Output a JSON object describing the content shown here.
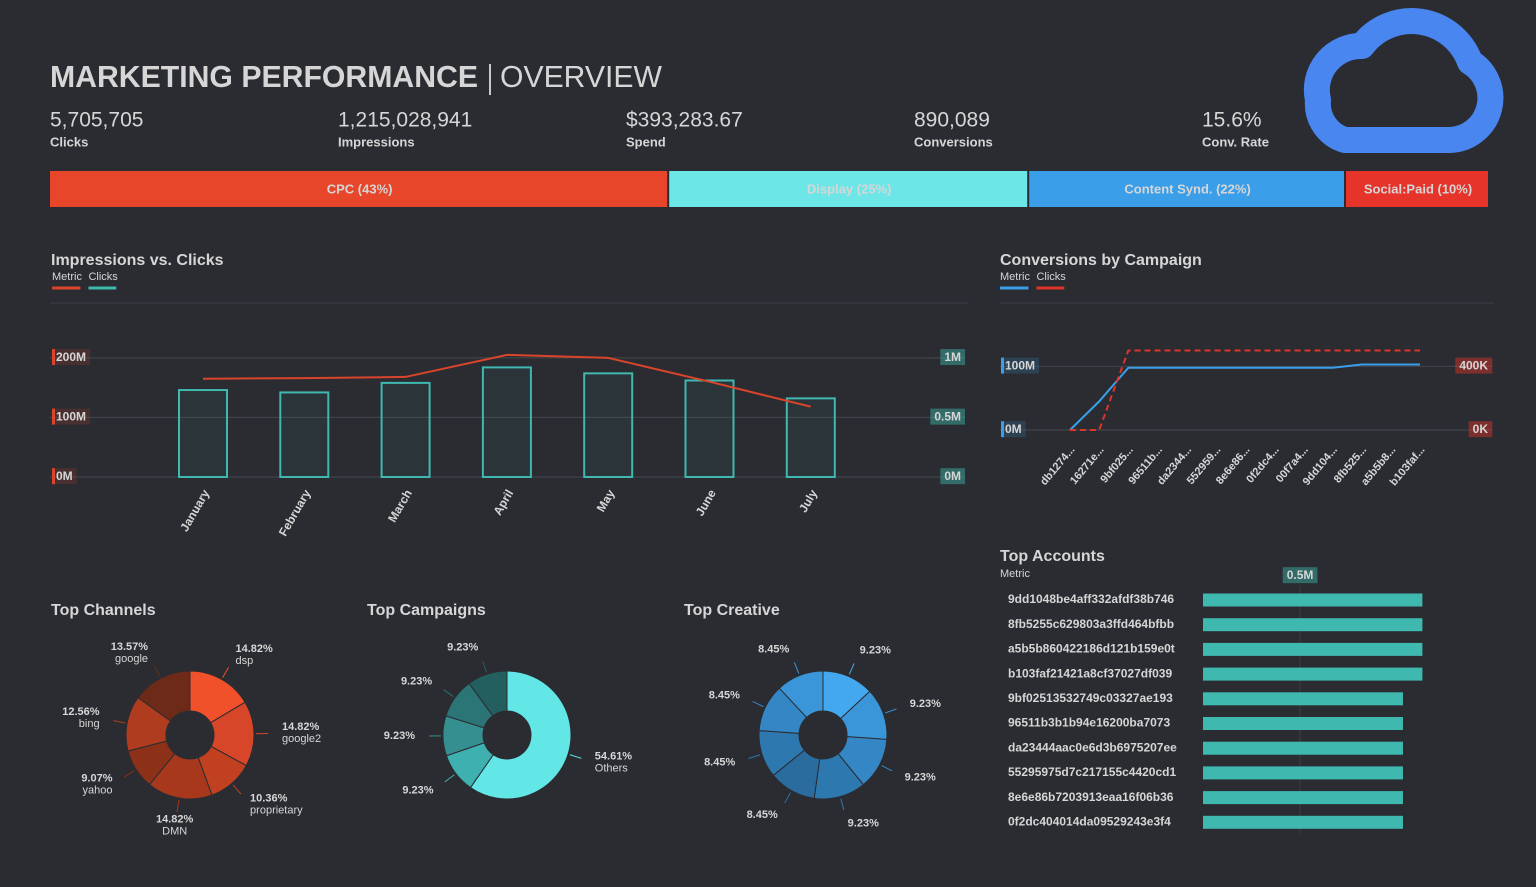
{
  "header": {
    "title": "MARKETING PERFORMANCE",
    "subtitle": "OVERVIEW"
  },
  "kpis": [
    {
      "value": "5,705,705",
      "label": "Clicks"
    },
    {
      "value": "1,215,028,941",
      "label": "Impressions"
    },
    {
      "value": "$393,283.67",
      "label": "Spend"
    },
    {
      "value": "890,089",
      "label": "Conversions"
    },
    {
      "value": "15.6%",
      "label": "Conv. Rate"
    }
  ],
  "share_bar": {
    "categories": [
      "CPC (43%)",
      "Display (25%)",
      "Content Synd. (22%)",
      "Social:Paid (10%)"
    ],
    "values": [
      43,
      25,
      22,
      10
    ],
    "colors": [
      "#e8462a",
      "#6de6e8",
      "#3a9ee8",
      "#e6342a"
    ]
  },
  "chart_data": [
    {
      "type": "combo",
      "title": "Impressions vs. Clicks",
      "categories": [
        "January",
        "February",
        "March",
        "April",
        "May",
        "June",
        "July"
      ],
      "series": [
        {
          "name": "Metric",
          "type": "line",
          "color": "#d9442b",
          "values": [
            165000000,
            166000000,
            168000000,
            205000000,
            200000000,
            160000000,
            118000000
          ]
        },
        {
          "name": "Clicks",
          "type": "bar",
          "axis": "y2",
          "color": "#3fb8b0",
          "values": [
            730000,
            710000,
            790000,
            920000,
            870000,
            810000,
            660000
          ]
        }
      ],
      "ylim": [
        0,
        230000000
      ],
      "yticks": [
        {
          "value": 0,
          "label": "0M"
        },
        {
          "value": 100000000,
          "label": "100M"
        },
        {
          "value": 200000000,
          "label": "200M"
        }
      ],
      "y2lim": [
        0,
        1150000
      ],
      "y2ticks": [
        {
          "value": 0,
          "label": "0M"
        },
        {
          "value": 500000,
          "label": "0.5M"
        },
        {
          "value": 1000000,
          "label": "1M"
        }
      ],
      "grid": true
    },
    {
      "type": "line",
      "title": "Conversions by Campaign",
      "categories": [
        "db1274...",
        "16271e...",
        "9bf025...",
        "96511b...",
        "da2344...",
        "552959...",
        "8e6e86...",
        "0f2dc4...",
        "00f7a4...",
        "9dd104...",
        "8fb525...",
        "a5b5b8...",
        "b103faf..."
      ],
      "series": [
        {
          "name": "Metric",
          "color": "#3a9ee8",
          "values": [
            0,
            45000000,
            98000000,
            98000000,
            98000000,
            98000000,
            98000000,
            98000000,
            98000000,
            98000000,
            103000000,
            103000000,
            103000000
          ]
        },
        {
          "name": "Clicks",
          "color": "#e0342a",
          "axis": "y2",
          "dashed": true,
          "values": [
            0,
            0,
            500000,
            500000,
            500000,
            500000,
            500000,
            500000,
            500000,
            500000,
            500000,
            500000,
            500000
          ]
        }
      ],
      "ylim": [
        0,
        140000000
      ],
      "yticks": [
        {
          "value": 0,
          "label": "0M"
        },
        {
          "value": 100000000,
          "label": "100M"
        }
      ],
      "y2lim": [
        0,
        560000
      ],
      "y2ticks": [
        {
          "value": 0,
          "label": "0K"
        },
        {
          "value": 400000,
          "label": "400K"
        }
      ],
      "grid": true
    },
    {
      "type": "donut",
      "title": "Top Channels",
      "categories": [
        "dsp",
        "google2",
        "proprietary",
        "DMN",
        "yahoo",
        "bing",
        "google"
      ],
      "values": [
        14.82,
        14.82,
        10.36,
        14.82,
        9.07,
        12.56,
        13.57
      ],
      "value_labels": [
        "14.82%",
        "14.82%",
        "10.36%",
        "14.82%",
        "9.07%",
        "12.56%",
        "13.57%"
      ],
      "colors": [
        "#f0502a",
        "#d8462a",
        "#c0401f",
        "#a8381c",
        "#8c3018",
        "#b03c20",
        "#6e2a18"
      ]
    },
    {
      "type": "donut",
      "title": "Top Campaigns",
      "categories": [
        "Others",
        null,
        null,
        null,
        null
      ],
      "values": [
        54.61,
        9.23,
        9.23,
        9.23,
        9.23
      ],
      "value_labels": [
        "54.61%",
        "9.23%",
        "9.23%",
        "9.23%",
        "9.23%"
      ],
      "colors": [
        "#62e6e6",
        "#3fb0b0",
        "#358f90",
        "#2c7576",
        "#245f60"
      ]
    },
    {
      "type": "donut",
      "title": "Top Creative",
      "categories": [
        null,
        null,
        null,
        null,
        null,
        null,
        null,
        null
      ],
      "values": [
        9.23,
        9.23,
        9.23,
        9.23,
        8.45,
        8.45,
        8.45,
        8.45
      ],
      "value_labels": [
        "9.23%",
        "9.23%",
        "9.23%",
        "9.23%",
        "8.45%",
        "8.45%",
        "8.45%",
        "8.45%"
      ],
      "colors": [
        "#43a8ee",
        "#3a96d8",
        "#3486c4",
        "#2e78b0",
        "#2a6c9e",
        "#2e78b0",
        "#3486c4",
        "#3a96d8"
      ]
    },
    {
      "type": "hbar",
      "title": "Top Accounts",
      "categories": [
        "9dd1048be4aff332afdf38b746",
        "8fb5255c629803a3ffd464bfbb",
        "a5b5b860422186d121b159e0t",
        "b103faf21421a8cf37027df039",
        "9bf02513532749c03327ae193",
        "96511b3b1b94e16200ba7073",
        "da23444aac0e6d3b6975207ee",
        "55295975d7c217155c4420cd1",
        "8e6e86b7203913eaa16f06b36",
        "0f2dc404014da09529243e3f4"
      ],
      "series": [
        {
          "name": "Metric",
          "color": "#3fb8b0",
          "values": [
            1130000,
            1130000,
            1130000,
            1130000,
            1030000,
            1030000,
            1030000,
            1030000,
            1030000,
            1030000
          ]
        }
      ],
      "xlim": [
        0,
        1200000
      ],
      "xticks": [
        {
          "value": 500000,
          "label": "0.5M"
        }
      ]
    }
  ]
}
